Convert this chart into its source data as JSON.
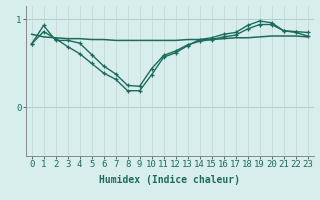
{
  "title": "",
  "xlabel": "Humidex (Indice chaleur)",
  "background_color": "#d7eeec",
  "line_color": "#1e6b5e",
  "grid_color_v": "#c8dbd9",
  "grid_color_h": "#aecfcb",
  "text_color": "#1e6b5e",
  "xlim": [
    -0.5,
    23.5
  ],
  "ylim": [
    -0.55,
    1.15
  ],
  "yticks": [
    0,
    1
  ],
  "xticks": [
    0,
    1,
    2,
    3,
    4,
    5,
    6,
    7,
    8,
    9,
    10,
    11,
    12,
    13,
    14,
    15,
    16,
    17,
    18,
    19,
    20,
    21,
    22,
    23
  ],
  "line1_x": [
    0,
    1,
    2,
    3,
    4,
    5,
    6,
    7,
    8,
    9,
    10,
    11,
    12,
    13,
    14,
    15,
    16,
    17,
    18,
    19,
    20,
    21,
    22,
    23
  ],
  "line1_y": [
    0.72,
    0.93,
    0.76,
    0.76,
    0.73,
    0.6,
    0.47,
    0.38,
    0.25,
    0.24,
    0.44,
    0.59,
    0.64,
    0.71,
    0.75,
    0.77,
    0.8,
    0.82,
    0.89,
    0.94,
    0.94,
    0.87,
    0.85,
    0.81
  ],
  "line2_x": [
    0,
    1,
    2,
    3,
    4,
    5,
    6,
    7,
    8,
    9,
    10,
    11,
    12,
    13,
    14,
    15,
    16,
    17,
    18,
    19,
    20,
    21,
    22,
    23
  ],
  "line2_y": [
    0.83,
    0.8,
    0.79,
    0.78,
    0.78,
    0.77,
    0.77,
    0.76,
    0.76,
    0.76,
    0.76,
    0.76,
    0.76,
    0.77,
    0.77,
    0.77,
    0.78,
    0.79,
    0.79,
    0.8,
    0.81,
    0.81,
    0.81,
    0.8
  ],
  "line3_x": [
    0,
    1,
    2,
    3,
    4,
    5,
    6,
    7,
    8,
    9,
    10,
    11,
    12,
    13,
    14,
    15,
    16,
    17,
    18,
    19,
    20,
    21,
    22,
    23
  ],
  "line3_y": [
    0.72,
    0.86,
    0.78,
    0.69,
    0.61,
    0.5,
    0.39,
    0.32,
    0.19,
    0.19,
    0.37,
    0.57,
    0.62,
    0.7,
    0.77,
    0.79,
    0.83,
    0.85,
    0.93,
    0.98,
    0.96,
    0.87,
    0.86,
    0.85
  ],
  "fontsize_label": 7,
  "fontsize_tick": 6.5
}
